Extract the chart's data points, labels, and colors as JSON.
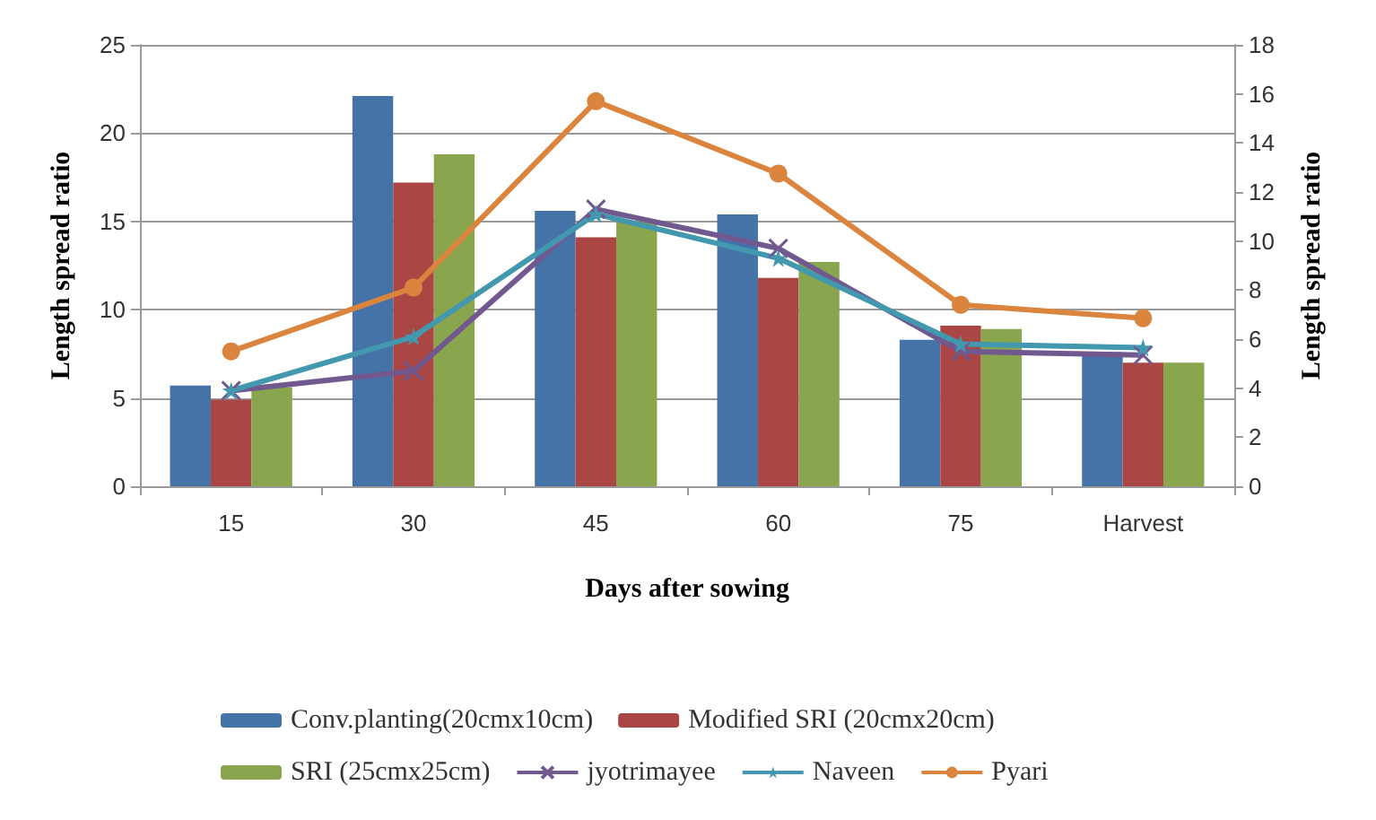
{
  "chart_data": {
    "type": "bar",
    "xlabel": "Days after sowing",
    "ylabel": "Length spread ratio",
    "y2label": "Length spread ratio",
    "categories": [
      "15",
      "30",
      "45",
      "60",
      "75",
      "Harvest"
    ],
    "ylim": [
      0,
      25
    ],
    "yticks": [
      0,
      5,
      10,
      15,
      20,
      25
    ],
    "y2lim": [
      0,
      18
    ],
    "y2ticks": [
      0,
      2,
      4,
      6,
      8,
      10,
      12,
      14,
      16,
      18
    ],
    "grid": "y",
    "legend": "bottom",
    "series": [
      {
        "name": "Conv.planting(20cmx10cm)",
        "color": "#4572a7",
        "values": [
          5.7,
          22.1,
          15.6,
          15.4,
          8.3,
          7.6
        ]
      },
      {
        "name": "Modified SRI (20cmx20cm)",
        "color": "#aa4643",
        "values": [
          4.9,
          17.2,
          14.1,
          11.8,
          9.1,
          7.0
        ]
      },
      {
        "name": "SRI (25cmx25cm)",
        "color": "#89a54e",
        "values": [
          5.6,
          18.8,
          15.0,
          12.7,
          8.9,
          7.0
        ]
      },
      {
        "name": "jyotrimayee",
        "type": "line",
        "axis": "y2",
        "marker": "cross",
        "color": "#71588f",
        "values": [
          3.9,
          4.7,
          11.3,
          9.7,
          5.5,
          5.35
        ]
      },
      {
        "name": "Naveen",
        "type": "line",
        "axis": "y2",
        "marker": "star",
        "color": "#4198af",
        "values": [
          3.9,
          6.1,
          11.1,
          9.3,
          5.8,
          5.65
        ]
      },
      {
        "name": "Pyari",
        "type": "line",
        "axis": "y2",
        "marker": "circle",
        "color": "#db843d",
        "values": [
          5.5,
          8.1,
          15.7,
          12.75,
          7.4,
          6.85
        ]
      }
    ]
  }
}
